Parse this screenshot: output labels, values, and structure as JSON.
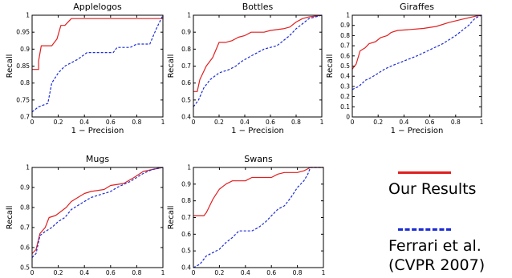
{
  "legend": {
    "ours": {
      "label": "Our Results",
      "color": "#e02020"
    },
    "ferrari": {
      "label_line1": "Ferrari et al.",
      "label_line2": "(CVPR 2007)",
      "color": "#1a2bd6"
    }
  },
  "chart_data": [
    {
      "type": "line",
      "title": "Applelogos",
      "xlabel": "1 − Precision",
      "ylabel": "Recall",
      "xlim": [
        0,
        1
      ],
      "ylim": [
        0.7,
        1
      ],
      "x_ticks": [
        "0",
        "0.2",
        "0.4",
        "0.6",
        "0.8",
        "1"
      ],
      "y_ticks": [
        "0.7",
        "0.75",
        "0.8",
        "0.85",
        "0.9",
        "0.95",
        "1"
      ],
      "series": [
        {
          "color": "#e02020",
          "style": "solid",
          "points": [
            [
              0,
              0.84
            ],
            [
              0.05,
              0.84
            ],
            [
              0.05,
              0.865
            ],
            [
              0.07,
              0.91
            ],
            [
              0.15,
              0.91
            ],
            [
              0.19,
              0.93
            ],
            [
              0.22,
              0.97
            ],
            [
              0.25,
              0.97
            ],
            [
              0.3,
              0.99
            ],
            [
              0.35,
              0.99
            ],
            [
              0.6,
              0.99
            ],
            [
              0.8,
              0.99
            ],
            [
              1,
              0.99
            ],
            [
              1,
              1
            ]
          ]
        },
        {
          "color": "#1a2bd6",
          "style": "dashed",
          "points": [
            [
              0,
              0.715
            ],
            [
              0.05,
              0.73
            ],
            [
              0.12,
              0.74
            ],
            [
              0.15,
              0.8
            ],
            [
              0.2,
              0.83
            ],
            [
              0.25,
              0.85
            ],
            [
              0.3,
              0.86
            ],
            [
              0.35,
              0.87
            ],
            [
              0.42,
              0.89
            ],
            [
              0.55,
              0.89
            ],
            [
              0.62,
              0.89
            ],
            [
              0.65,
              0.905
            ],
            [
              0.75,
              0.905
            ],
            [
              0.8,
              0.915
            ],
            [
              0.9,
              0.915
            ],
            [
              0.95,
              0.96
            ],
            [
              1,
              1
            ]
          ]
        }
      ]
    },
    {
      "type": "line",
      "title": "Bottles",
      "xlabel": "1 − Precision",
      "ylabel": "Recall",
      "xlim": [
        0,
        1
      ],
      "ylim": [
        0.4,
        1
      ],
      "x_ticks": [
        "0",
        "0.2",
        "0.4",
        "0.6",
        "0.8",
        "1"
      ],
      "y_ticks": [
        "0.4",
        "0.5",
        "0.6",
        "0.7",
        "0.8",
        "0.9",
        "1"
      ],
      "series": [
        {
          "color": "#e02020",
          "style": "solid",
          "points": [
            [
              0,
              0.55
            ],
            [
              0.03,
              0.55
            ],
            [
              0.05,
              0.62
            ],
            [
              0.1,
              0.7
            ],
            [
              0.15,
              0.75
            ],
            [
              0.2,
              0.84
            ],
            [
              0.25,
              0.84
            ],
            [
              0.3,
              0.85
            ],
            [
              0.35,
              0.87
            ],
            [
              0.4,
              0.88
            ],
            [
              0.45,
              0.9
            ],
            [
              0.55,
              0.9
            ],
            [
              0.6,
              0.91
            ],
            [
              0.7,
              0.92
            ],
            [
              0.75,
              0.93
            ],
            [
              0.8,
              0.96
            ],
            [
              0.85,
              0.98
            ],
            [
              0.9,
              0.99
            ],
            [
              1,
              1
            ]
          ]
        },
        {
          "color": "#1a2bd6",
          "style": "dashed",
          "points": [
            [
              0,
              0.46
            ],
            [
              0.04,
              0.5
            ],
            [
              0.08,
              0.57
            ],
            [
              0.13,
              0.62
            ],
            [
              0.2,
              0.66
            ],
            [
              0.28,
              0.68
            ],
            [
              0.33,
              0.7
            ],
            [
              0.38,
              0.73
            ],
            [
              0.45,
              0.76
            ],
            [
              0.5,
              0.78
            ],
            [
              0.55,
              0.8
            ],
            [
              0.65,
              0.82
            ],
            [
              0.7,
              0.85
            ],
            [
              0.75,
              0.88
            ],
            [
              0.8,
              0.92
            ],
            [
              0.85,
              0.95
            ],
            [
              0.9,
              0.98
            ],
            [
              1,
              1
            ]
          ]
        }
      ]
    },
    {
      "type": "line",
      "title": "Giraffes",
      "xlabel": "1 − Precision",
      "ylabel": "Recall",
      "xlim": [
        0,
        1
      ],
      "ylim": [
        0,
        1
      ],
      "x_ticks": [
        "0",
        "0.2",
        "0.4",
        "0.6",
        "0.8",
        "1"
      ],
      "y_ticks": [
        "0",
        "0.1",
        "0.2",
        "0.3",
        "0.4",
        "0.5",
        "0.6",
        "0.7",
        "0.8",
        "0.9",
        "1"
      ],
      "series": [
        {
          "color": "#e02020",
          "style": "solid",
          "points": [
            [
              0,
              0.47
            ],
            [
              0.03,
              0.52
            ],
            [
              0.06,
              0.65
            ],
            [
              0.1,
              0.68
            ],
            [
              0.13,
              0.72
            ],
            [
              0.18,
              0.74
            ],
            [
              0.22,
              0.78
            ],
            [
              0.27,
              0.8
            ],
            [
              0.3,
              0.83
            ],
            [
              0.35,
              0.85
            ],
            [
              0.45,
              0.86
            ],
            [
              0.55,
              0.87
            ],
            [
              0.65,
              0.89
            ],
            [
              0.75,
              0.93
            ],
            [
              0.85,
              0.96
            ],
            [
              0.95,
              0.99
            ],
            [
              1,
              1
            ]
          ]
        },
        {
          "color": "#1a2bd6",
          "style": "dashed",
          "points": [
            [
              0,
              0.27
            ],
            [
              0.05,
              0.3
            ],
            [
              0.1,
              0.36
            ],
            [
              0.15,
              0.39
            ],
            [
              0.2,
              0.43
            ],
            [
              0.25,
              0.47
            ],
            [
              0.3,
              0.5
            ],
            [
              0.4,
              0.55
            ],
            [
              0.5,
              0.6
            ],
            [
              0.6,
              0.66
            ],
            [
              0.7,
              0.72
            ],
            [
              0.8,
              0.8
            ],
            [
              0.9,
              0.9
            ],
            [
              0.95,
              0.97
            ],
            [
              1,
              1
            ]
          ]
        }
      ]
    },
    {
      "type": "line",
      "title": "Mugs",
      "xlabel": "",
      "ylabel": "Recall",
      "xlim": [
        0,
        1
      ],
      "ylim": [
        0.5,
        1
      ],
      "x_ticks": [
        "0",
        "0.2",
        "0.4",
        "0.6",
        "0.8",
        "1"
      ],
      "y_ticks": [
        "0.5",
        "0.6",
        "0.7",
        "0.8",
        "0.9",
        "1"
      ],
      "series": [
        {
          "color": "#e02020",
          "style": "solid",
          "points": [
            [
              0,
              0.57
            ],
            [
              0.03,
              0.59
            ],
            [
              0.06,
              0.67
            ],
            [
              0.1,
              0.7
            ],
            [
              0.13,
              0.75
            ],
            [
              0.18,
              0.76
            ],
            [
              0.22,
              0.78
            ],
            [
              0.26,
              0.8
            ],
            [
              0.3,
              0.83
            ],
            [
              0.35,
              0.85
            ],
            [
              0.4,
              0.87
            ],
            [
              0.45,
              0.88
            ],
            [
              0.55,
              0.89
            ],
            [
              0.6,
              0.91
            ],
            [
              0.7,
              0.92
            ],
            [
              0.78,
              0.95
            ],
            [
              0.85,
              0.98
            ],
            [
              0.92,
              0.99
            ],
            [
              1,
              1
            ]
          ]
        },
        {
          "color": "#1a2bd6",
          "style": "dashed",
          "points": [
            [
              0,
              0.55
            ],
            [
              0.03,
              0.57
            ],
            [
              0.06,
              0.66
            ],
            [
              0.1,
              0.68
            ],
            [
              0.15,
              0.7
            ],
            [
              0.2,
              0.73
            ],
            [
              0.25,
              0.75
            ],
            [
              0.3,
              0.79
            ],
            [
              0.35,
              0.81
            ],
            [
              0.4,
              0.83
            ],
            [
              0.45,
              0.85
            ],
            [
              0.5,
              0.86
            ],
            [
              0.6,
              0.88
            ],
            [
              0.65,
              0.9
            ],
            [
              0.75,
              0.93
            ],
            [
              0.85,
              0.97
            ],
            [
              0.92,
              0.99
            ],
            [
              1,
              1
            ]
          ]
        }
      ]
    },
    {
      "type": "line",
      "title": "Swans",
      "xlabel": "",
      "ylabel": "Recall",
      "xlim": [
        0,
        1
      ],
      "ylim": [
        0.4,
        1
      ],
      "x_ticks": [
        "0",
        "0.2",
        "0.4",
        "0.6",
        "0.8",
        "1"
      ],
      "y_ticks": [
        "0.4",
        "0.5",
        "0.6",
        "0.7",
        "0.8",
        "0.9",
        "1"
      ],
      "series": [
        {
          "color": "#e02020",
          "style": "solid",
          "points": [
            [
              0,
              0.71
            ],
            [
              0.08,
              0.71
            ],
            [
              0.1,
              0.73
            ],
            [
              0.15,
              0.81
            ],
            [
              0.2,
              0.87
            ],
            [
              0.25,
              0.9
            ],
            [
              0.3,
              0.92
            ],
            [
              0.4,
              0.92
            ],
            [
              0.45,
              0.94
            ],
            [
              0.6,
              0.94
            ],
            [
              0.65,
              0.96
            ],
            [
              0.7,
              0.97
            ],
            [
              0.8,
              0.97
            ],
            [
              0.85,
              0.98
            ],
            [
              0.9,
              1
            ],
            [
              1,
              1
            ]
          ]
        },
        {
          "color": "#1a2bd6",
          "style": "dashed",
          "points": [
            [
              0,
              0.4
            ],
            [
              0.05,
              0.42
            ],
            [
              0.1,
              0.47
            ],
            [
              0.15,
              0.49
            ],
            [
              0.2,
              0.51
            ],
            [
              0.25,
              0.55
            ],
            [
              0.3,
              0.58
            ],
            [
              0.35,
              0.62
            ],
            [
              0.45,
              0.62
            ],
            [
              0.5,
              0.64
            ],
            [
              0.55,
              0.67
            ],
            [
              0.6,
              0.71
            ],
            [
              0.65,
              0.75
            ],
            [
              0.7,
              0.77
            ],
            [
              0.75,
              0.82
            ],
            [
              0.8,
              0.88
            ],
            [
              0.85,
              0.92
            ],
            [
              0.88,
              0.96
            ],
            [
              0.9,
              1
            ],
            [
              1,
              1
            ]
          ]
        }
      ]
    }
  ]
}
